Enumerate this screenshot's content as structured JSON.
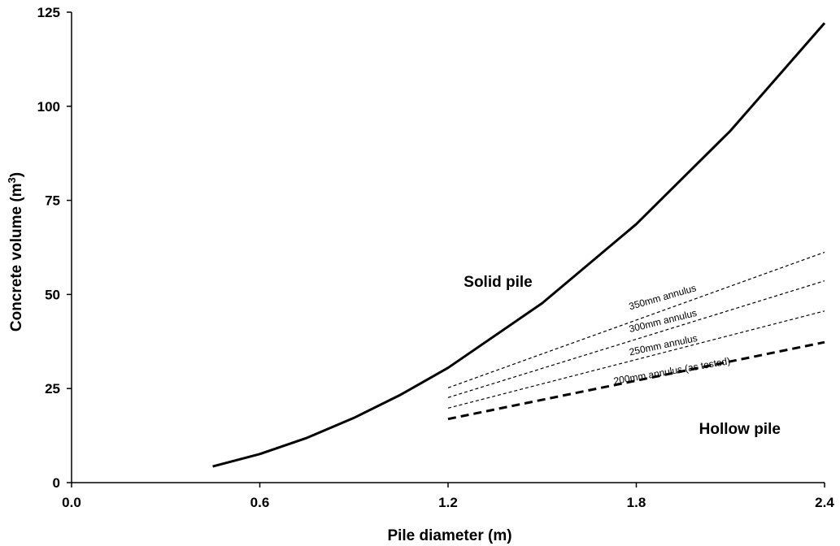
{
  "chart_data": {
    "type": "line",
    "title": "",
    "xlabel": "Pile diameter (m)",
    "ylabel": "Concrete volume (m³)",
    "xlim": [
      0.0,
      2.4
    ],
    "ylim": [
      0,
      125
    ],
    "xticks": [
      "0.0",
      "0.6",
      "1.2",
      "1.8",
      "2.4"
    ],
    "yticks": [
      "0",
      "25",
      "50",
      "75",
      "100",
      "125"
    ],
    "grid": false,
    "series": [
      {
        "id": "solid",
        "style": "solid",
        "x": [
          0.45,
          0.6,
          0.75,
          0.9,
          1.05,
          1.2,
          1.5,
          1.8,
          2.1,
          2.4
        ],
        "y": [
          4.3,
          7.6,
          11.9,
          17.2,
          23.4,
          30.5,
          47.7,
          68.7,
          93.5,
          122.1
        ]
      },
      {
        "id": "a350",
        "style": "thin-dashed",
        "x": [
          1.2,
          2.4
        ],
        "y": [
          25.2,
          61.2
        ]
      },
      {
        "id": "a300",
        "style": "thin-dashed",
        "x": [
          1.2,
          2.4
        ],
        "y": [
          22.6,
          53.6
        ]
      },
      {
        "id": "a250",
        "style": "thin-dashed",
        "x": [
          1.2,
          2.4
        ],
        "y": [
          19.8,
          45.6
        ]
      },
      {
        "id": "a200",
        "style": "thick-dashed",
        "x": [
          1.2,
          2.4
        ],
        "y": [
          16.9,
          37.3
        ]
      }
    ],
    "annotations": [
      {
        "text": "Solid pile",
        "x": 1.25,
        "y": 52,
        "size": "large",
        "rotate": 0
      },
      {
        "text": "Hollow pile",
        "x": 2.0,
        "y": 13,
        "size": "large",
        "rotate": 0
      },
      {
        "text": "350mm annulus",
        "x": 1.78,
        "y": 45.9,
        "size": "small",
        "rotate": -16
      },
      {
        "text": "300mm annulus",
        "x": 1.78,
        "y": 39.9,
        "size": "small",
        "rotate": -14
      },
      {
        "text": "250mm annulus",
        "x": 1.78,
        "y": 33.8,
        "size": "small",
        "rotate": -12
      },
      {
        "text": "200mm annulus (as tested)",
        "x": 1.73,
        "y": 26.1,
        "size": "small",
        "rotate": -10
      }
    ]
  }
}
